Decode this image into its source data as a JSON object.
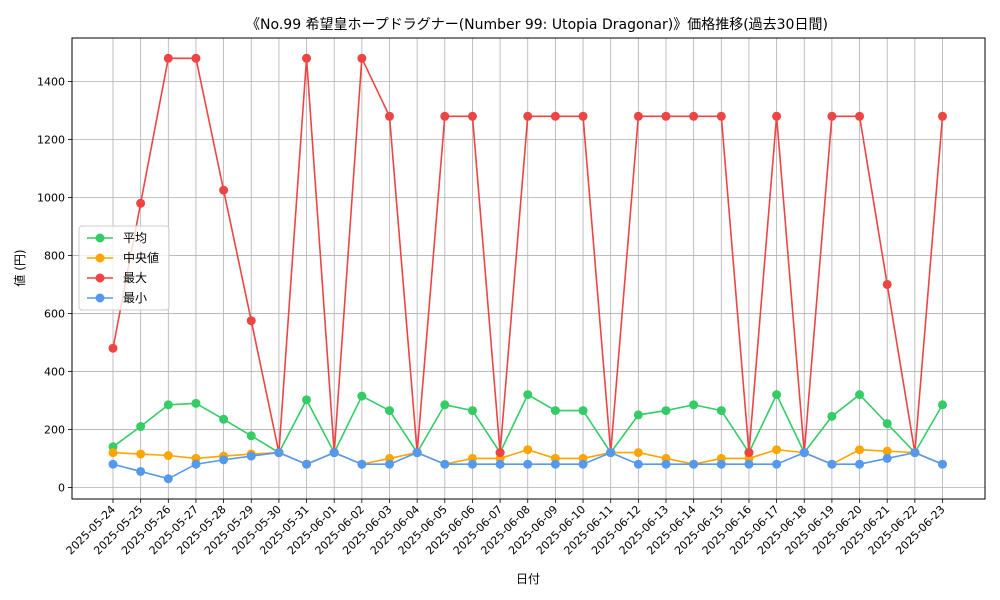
{
  "chart_data": {
    "type": "line",
    "title": "《No.99 希望皇ホープドラグナー(Number 99: Utopia Dragonar)》価格推移(過去30日間)",
    "xlabel": "日付",
    "ylabel": "値 (円)",
    "ylim": [
      -40,
      1550
    ],
    "yticks": [
      0,
      200,
      400,
      600,
      800,
      1000,
      1200,
      1400
    ],
    "grid": true,
    "legend_position": "center-left",
    "categories": [
      "2025-05-24",
      "2025-05-25",
      "2025-05-26",
      "2025-05-27",
      "2025-05-28",
      "2025-05-29",
      "2025-05-30",
      "2025-05-31",
      "2025-06-01",
      "2025-06-02",
      "2025-06-03",
      "2025-06-04",
      "2025-06-05",
      "2025-06-06",
      "2025-06-07",
      "2025-06-08",
      "2025-06-09",
      "2025-06-10",
      "2025-06-11",
      "2025-06-12",
      "2025-06-13",
      "2025-06-14",
      "2025-06-15",
      "2025-06-16",
      "2025-06-17",
      "2025-06-18",
      "2025-06-19",
      "2025-06-20",
      "2025-06-21",
      "2025-06-22",
      "2025-06-23"
    ],
    "series": [
      {
        "name": "平均",
        "color": "#33cc66",
        "values": [
          140,
          210,
          285,
          290,
          235,
          178,
          120,
          302,
          120,
          315,
          265,
          120,
          285,
          265,
          120,
          320,
          265,
          265,
          120,
          250,
          265,
          285,
          265,
          120,
          320,
          120,
          245,
          320,
          220,
          120,
          285
        ]
      },
      {
        "name": "中央値",
        "color": "#ffa500",
        "values": [
          120,
          115,
          110,
          100,
          108,
          115,
          120,
          80,
          120,
          80,
          100,
          120,
          80,
          100,
          100,
          130,
          100,
          100,
          120,
          120,
          100,
          80,
          100,
          100,
          130,
          120,
          80,
          130,
          125,
          120,
          80
        ]
      },
      {
        "name": "最大",
        "color": "#ee4444",
        "values": [
          480,
          980,
          1480,
          1480,
          1025,
          575,
          120,
          1480,
          120,
          1480,
          1280,
          120,
          1280,
          1280,
          120,
          1280,
          1280,
          1280,
          120,
          1280,
          1280,
          1280,
          1280,
          120,
          1280,
          120,
          1280,
          1280,
          700,
          120,
          1280
        ]
      },
      {
        "name": "最小",
        "color": "#5599ee",
        "values": [
          80,
          55,
          30,
          80,
          95,
          108,
          120,
          80,
          120,
          80,
          80,
          120,
          80,
          80,
          80,
          80,
          80,
          80,
          120,
          80,
          80,
          80,
          80,
          80,
          80,
          120,
          80,
          80,
          100,
          120,
          80
        ]
      }
    ]
  }
}
